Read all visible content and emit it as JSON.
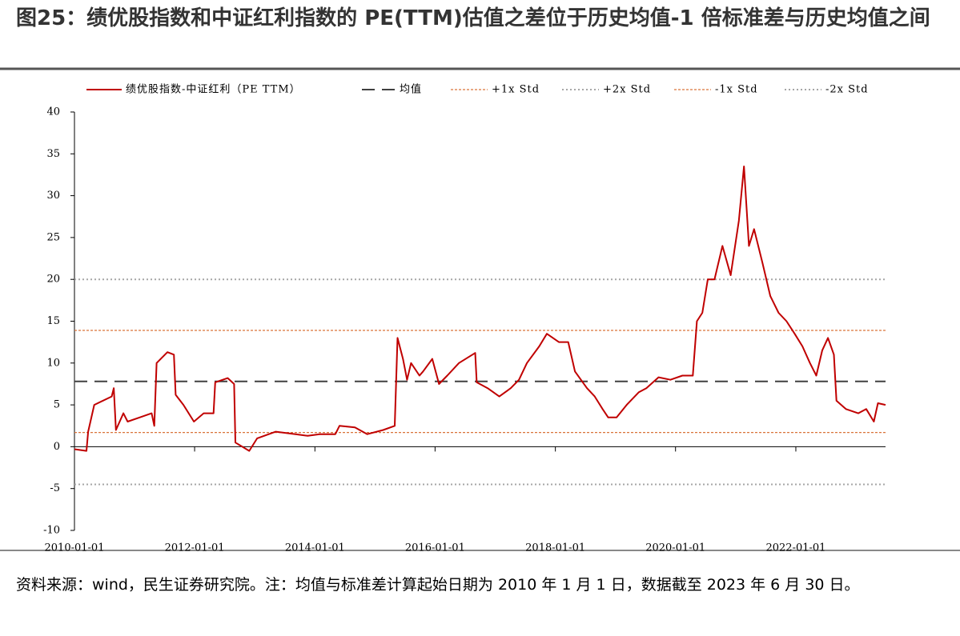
{
  "chart_data": {
    "type": "line",
    "title": "图25：绩优股指数和中证红利指数的 PE(TTM)估值之差位于历史均值-1 倍标准差与历史均值之间",
    "source": "资料来源：wind，民生证券研究院。注：均值与标准差计算起始日期为 2010 年 1 月 1 日，数据截至 2023 年 6 月 30 日。",
    "x": [
      "2010-01-01",
      "2010-03-15",
      "2010-03-25",
      "2010-05-01",
      "2010-08-15",
      "2010-08-28",
      "2010-09-10",
      "2010-10-25",
      "2010-11-20",
      "2011-02-01",
      "2011-04-15",
      "2011-05-01",
      "2011-05-15",
      "2011-07-20",
      "2011-08-28",
      "2011-09-08",
      "2011-10-25",
      "2011-12-28",
      "2012-02-25",
      "2012-04-25",
      "2012-05-05",
      "2012-07-20",
      "2012-08-28",
      "2012-09-05",
      "2012-11-28",
      "2013-01-15",
      "2013-05-08",
      "2013-09-05",
      "2013-11-18",
      "2014-01-30",
      "2014-05-05",
      "2014-05-30",
      "2014-09-01",
      "2014-11-15",
      "2015-02-20",
      "2015-05-01",
      "2015-05-18",
      "2015-06-20",
      "2015-07-15",
      "2015-08-08",
      "2015-09-28",
      "2015-10-20",
      "2015-12-15",
      "2016-01-25",
      "2016-03-15",
      "2016-05-25",
      "2016-09-01",
      "2016-09-10",
      "2016-11-15",
      "2017-01-25",
      "2017-04-05",
      "2017-05-25",
      "2017-07-12",
      "2017-09-25",
      "2017-11-10",
      "2018-01-22",
      "2018-03-20",
      "2018-04-30",
      "2018-07-12",
      "2018-08-28",
      "2018-10-15",
      "2018-11-18",
      "2019-01-08",
      "2019-03-10",
      "2019-05-22",
      "2019-07-08",
      "2019-09-20",
      "2019-12-01",
      "2020-02-12",
      "2020-04-15",
      "2020-05-10",
      "2020-06-12",
      "2020-07-15",
      "2020-08-25",
      "2020-10-12",
      "2020-12-01",
      "2021-01-20",
      "2021-02-20",
      "2021-03-22",
      "2021-04-22",
      "2021-06-12",
      "2021-07-30",
      "2021-09-18",
      "2021-11-05",
      "2021-12-25",
      "2022-02-10",
      "2022-03-28",
      "2022-05-05",
      "2022-06-10",
      "2022-07-15",
      "2022-08-20",
      "2022-09-05",
      "2022-11-01",
      "2023-01-15",
      "2023-03-05",
      "2023-04-20",
      "2023-05-15",
      "2023-06-30"
    ],
    "series": [
      {
        "name": "绩优股指数-中证红利（PE TTM）",
        "color": "#c00000",
        "values": [
          -0.3,
          -0.5,
          1.8,
          5,
          6,
          7,
          2,
          4,
          3,
          3.5,
          4,
          2.5,
          10,
          11.3,
          11,
          6.2,
          5,
          3,
          4,
          4,
          7.7,
          8.2,
          7.5,
          0.5,
          -0.5,
          1,
          1.8,
          1.5,
          1.3,
          1.5,
          1.5,
          2.5,
          2.3,
          1.5,
          2,
          2.5,
          13,
          10.5,
          8,
          10,
          8.5,
          9,
          10.5,
          7.5,
          8.5,
          10,
          11.2,
          7.7,
          7,
          6,
          7,
          8,
          10,
          12,
          13.5,
          12.5,
          12.5,
          9,
          7,
          6,
          4.5,
          3.5,
          3.5,
          5,
          6.5,
          7,
          8.3,
          8,
          8.5,
          8.5,
          15,
          16,
          20,
          20,
          24,
          20.5,
          27,
          33.5,
          24,
          26,
          22,
          18,
          16,
          15,
          13.5,
          12,
          10,
          8.5,
          11.5,
          13,
          11,
          5.5,
          4.5,
          4,
          4.5,
          3,
          5.2,
          5
        ]
      }
    ],
    "reference_lines": [
      {
        "name": "均值",
        "value": 7.8,
        "color": "#404040",
        "style": "dashed"
      },
      {
        "name": "+1x Std",
        "value": 13.9,
        "color": "#d9733a",
        "style": "short-dashed"
      },
      {
        "name": "+2x Std",
        "value": 20,
        "color": "#a6a6a6",
        "style": "dotted"
      },
      {
        "name": "-1x Std",
        "value": 1.7,
        "color": "#d9733a",
        "style": "short-dashed"
      },
      {
        "name": "-2x Std",
        "value": -4.5,
        "color": "#a6a6a6",
        "style": "dotted"
      }
    ],
    "xlim": [
      "2010-01-01",
      "2023-06-30"
    ],
    "xticks": [
      "2010-01-01",
      "2012-01-01",
      "2014-01-01",
      "2016-01-01",
      "2018-01-01",
      "2020-01-01",
      "2022-01-01"
    ],
    "ylim": [
      -10,
      40
    ],
    "yticks": [
      -10,
      -5,
      0,
      5,
      10,
      15,
      20,
      25,
      30,
      35,
      40
    ],
    "legend": "top"
  }
}
